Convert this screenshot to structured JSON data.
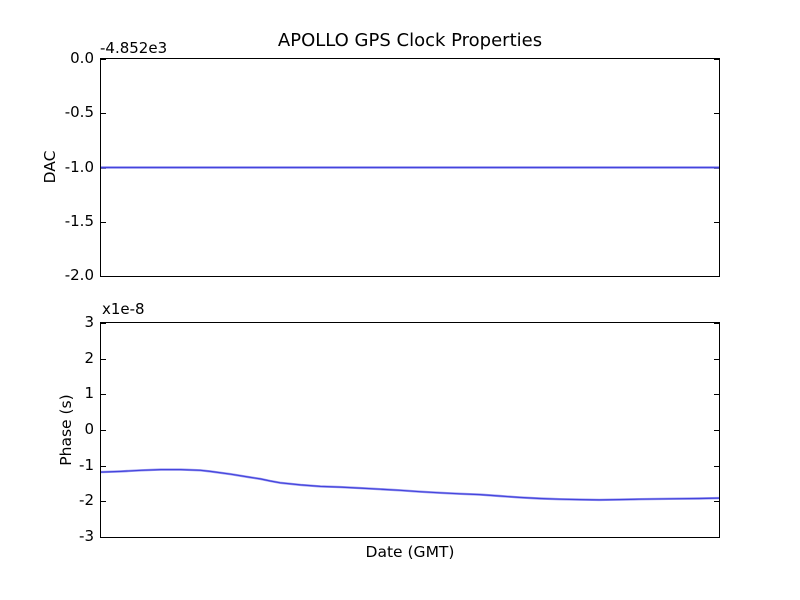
{
  "figure": {
    "title": "APOLLO GPS Clock Properties",
    "background": "#ffffff"
  },
  "colors": {
    "line": "#4444dd",
    "line_halo": "#9d9df0",
    "axis": "#000000",
    "text": "#000000",
    "background": "#ffffff"
  },
  "chart_data": [
    {
      "type": "line",
      "title": "APOLLO GPS Clock Properties",
      "ylabel": "DAC",
      "xlabel": "",
      "offset_text": "-4.852e3",
      "yticks": [
        "0.0",
        "-0.5",
        "-1.0",
        "-1.5",
        "-2.0"
      ],
      "ylim": [
        -2.0,
        0.0
      ],
      "xticks": [],
      "grid": false,
      "legend": null,
      "note": "constant DAC value of -1.0 relative to offset -4.852e3 (actual ~ -4853.0); x axis shows no tick labels",
      "series": [
        {
          "name": "DAC",
          "x": [
            0.0,
            1.0
          ],
          "y": [
            -1.0,
            -1.0
          ]
        }
      ]
    },
    {
      "type": "line",
      "title": "",
      "ylabel": "Phase (s)",
      "xlabel": "Date (GMT)",
      "offset_text": "x1e-8",
      "yticks": [
        "3",
        "2",
        "1",
        "0",
        "-1",
        "-2",
        "-3"
      ],
      "ylim": [
        -3.0,
        3.0
      ],
      "xticks": [],
      "grid": false,
      "legend": null,
      "note": "phase in units of 1e-8 s; x values are fractions of axis width (no date tick labels shown)",
      "series": [
        {
          "name": "Phase",
          "x": [
            0.0,
            0.032,
            0.065,
            0.097,
            0.129,
            0.161,
            0.177,
            0.21,
            0.242,
            0.258,
            0.274,
            0.29,
            0.323,
            0.355,
            0.387,
            0.419,
            0.452,
            0.484,
            0.516,
            0.548,
            0.581,
            0.613,
            0.645,
            0.677,
            0.71,
            0.742,
            0.774,
            0.806,
            0.839,
            0.871,
            0.919,
            0.968,
            1.0
          ],
          "y": [
            -1.18,
            -1.16,
            -1.13,
            -1.11,
            -1.11,
            -1.13,
            -1.16,
            -1.24,
            -1.33,
            -1.37,
            -1.43,
            -1.48,
            -1.54,
            -1.58,
            -1.6,
            -1.63,
            -1.66,
            -1.69,
            -1.73,
            -1.76,
            -1.79,
            -1.81,
            -1.85,
            -1.89,
            -1.92,
            -1.94,
            -1.95,
            -1.96,
            -1.95,
            -1.94,
            -1.93,
            -1.92,
            -1.91
          ]
        }
      ]
    }
  ]
}
